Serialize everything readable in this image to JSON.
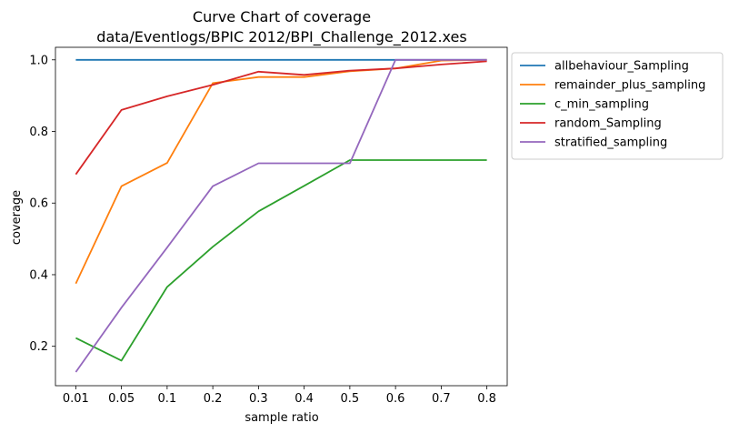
{
  "chart_data": {
    "type": "line",
    "title_line1": "Curve Chart of coverage",
    "title_line2": "data/Eventlogs/BPIC 2012/BPI_Challenge_2012.xes",
    "xlabel": "sample ratio",
    "ylabel": "coverage",
    "categories": [
      "0.01",
      "0.05",
      "0.1",
      "0.2",
      "0.3",
      "0.4",
      "0.5",
      "0.6",
      "0.7",
      "0.8"
    ],
    "ylim": [
      0.09,
      1.035
    ],
    "yticks": [
      0.2,
      0.4,
      0.6,
      0.8,
      1.0
    ],
    "ytick_labels": [
      "0.2",
      "0.4",
      "0.6",
      "0.8",
      "1.0"
    ],
    "grid": false,
    "legend_position": "outside-upper-right",
    "series": [
      {
        "name": "allbehaviour_Sampling",
        "color": "#1f77b4",
        "values": [
          1.0,
          1.0,
          1.0,
          1.0,
          1.0,
          1.0,
          1.0,
          1.0,
          1.0,
          1.0
        ]
      },
      {
        "name": "remainder_plus_sampling",
        "color": "#ff7f0e",
        "values": [
          0.375,
          0.647,
          0.712,
          0.935,
          0.952,
          0.952,
          0.968,
          0.976,
          0.998,
          1.0
        ]
      },
      {
        "name": "c_min_sampling",
        "color": "#2ca02c",
        "values": [
          0.223,
          0.16,
          0.366,
          0.478,
          0.577,
          0.648,
          0.72,
          0.72,
          0.72,
          0.72
        ]
      },
      {
        "name": "random_Sampling",
        "color": "#d62728",
        "values": [
          0.68,
          0.86,
          0.898,
          0.93,
          0.967,
          0.958,
          0.97,
          0.976,
          0.987,
          0.996
        ]
      },
      {
        "name": "stratified_sampling",
        "color": "#9467bd",
        "values": [
          0.128,
          0.308,
          0.476,
          0.647,
          0.711,
          0.711,
          0.711,
          1.0,
          1.0,
          1.0
        ]
      }
    ]
  }
}
